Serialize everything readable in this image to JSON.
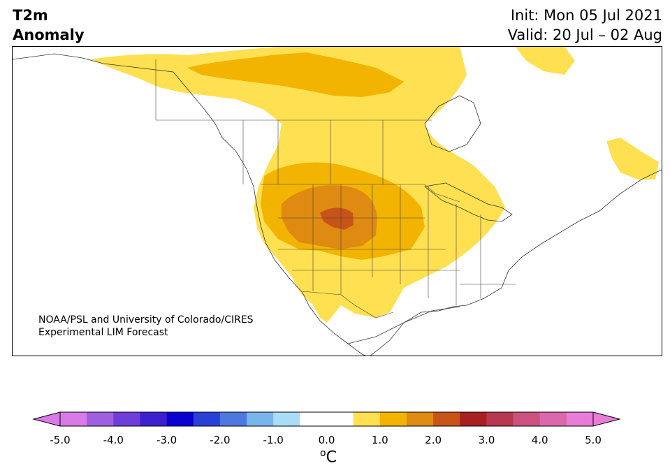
{
  "title": {
    "line1": "T2m",
    "line2": "Anomaly"
  },
  "dates": {
    "init": "Init: Mon 05 Jul 2021",
    "valid": "Valid: 20 Jul – 02 Aug"
  },
  "credit": {
    "line1": "NOAA/PSL and University of Colorado/CIRES",
    "line2": "Experimental LIM Forecast"
  },
  "colorbar": {
    "unit_symbol": "o",
    "unit_letter": "C",
    "tick_labels": [
      "-5.0",
      "-4.0",
      "-3.0",
      "-2.0",
      "-1.0",
      "0.0",
      "1.0",
      "2.0",
      "3.0",
      "4.0",
      "5.0"
    ],
    "colors": [
      "#d97ae6",
      "#a05ee0",
      "#6e3ed8",
      "#3e1fd0",
      "#0a00d0",
      "#2840d8",
      "#4d78e0",
      "#78b4ec",
      "#aadcf8",
      "#ffffff",
      "#ffffff",
      "#ffe050",
      "#f2b400",
      "#df8a10",
      "#c85418",
      "#a82020",
      "#b83850",
      "#cc5080",
      "#dc68ac",
      "#e87cd8"
    ],
    "under_color": "#d97ae6",
    "over_color": "#e87cd8"
  },
  "map": {
    "anomaly_regions": [
      {
        "level": "0.5-1.0",
        "color": "#ffe050"
      },
      {
        "level": "1.0-1.5",
        "color": "#f2b400"
      },
      {
        "level": "1.5-2.0",
        "color": "#df8a10"
      },
      {
        "level": "2.0-2.5",
        "color": "#c85418"
      }
    ]
  }
}
